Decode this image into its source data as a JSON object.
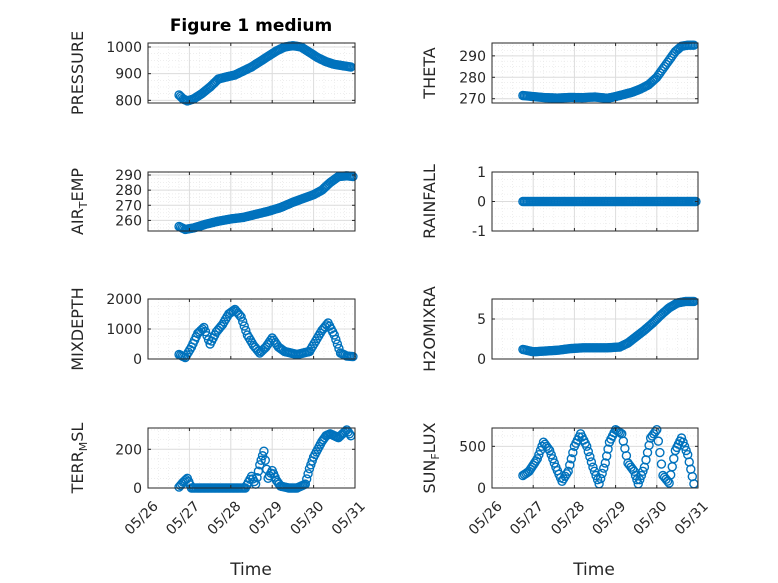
{
  "figure": {
    "title": "Figure 1 medium",
    "colors": {
      "marker": "#0072BD",
      "axis": "#262626",
      "grid": "#dcdcdc",
      "background": "#ffffff"
    }
  },
  "chart_data": [
    {
      "type": "scatter",
      "ylabel": "PRESSURE",
      "title": "Figure 1 medium",
      "ylim": [
        790,
        1015
      ],
      "yticks": [
        800,
        900,
        1000
      ],
      "xlim": [
        "05/26",
        "05/31"
      ],
      "grid": true,
      "x": [
        0.75,
        0.85,
        0.95,
        1.1,
        1.3,
        1.5,
        1.7,
        1.9,
        2.1,
        2.3,
        2.5,
        2.7,
        2.9,
        3.1,
        3.3,
        3.5,
        3.7,
        3.9,
        4.1,
        4.3,
        4.5,
        4.7,
        4.9
      ],
      "values": [
        820,
        805,
        798,
        805,
        825,
        850,
        880,
        888,
        895,
        910,
        925,
        945,
        965,
        985,
        1000,
        1005,
        1000,
        980,
        960,
        945,
        935,
        930,
        925
      ]
    },
    {
      "type": "scatter",
      "ylabel": "THETA",
      "ylim": [
        268,
        296
      ],
      "yticks": [
        270,
        280,
        290
      ],
      "xlim": [
        "05/26",
        "05/31"
      ],
      "grid": true,
      "x": [
        0.75,
        1.0,
        1.3,
        1.6,
        1.9,
        2.2,
        2.5,
        2.8,
        3.0,
        3.2,
        3.4,
        3.6,
        3.8,
        4.0,
        4.15,
        4.3,
        4.45,
        4.6,
        4.75,
        4.9
      ],
      "values": [
        271.5,
        271,
        270.5,
        270.3,
        270.6,
        270.5,
        270.8,
        270.2,
        271,
        272,
        273,
        274.5,
        276.5,
        280,
        284,
        288,
        292,
        294.5,
        295,
        295
      ]
    },
    {
      "type": "scatter",
      "ylabel": "AIR_TEMP",
      "ylim": [
        253,
        292
      ],
      "yticks": [
        260,
        270,
        280,
        290
      ],
      "xlim": [
        "05/26",
        "05/31"
      ],
      "grid": true,
      "x": [
        0.75,
        0.9,
        1.1,
        1.4,
        1.7,
        2.0,
        2.3,
        2.6,
        2.9,
        3.2,
        3.5,
        3.8,
        4.0,
        4.2,
        4.4,
        4.6,
        4.8,
        4.95
      ],
      "values": [
        256,
        254,
        255,
        257.5,
        259.5,
        261,
        262,
        264,
        266,
        268.5,
        272,
        275,
        277,
        280,
        285,
        289,
        289.5,
        289
      ]
    },
    {
      "type": "scatter",
      "ylabel": "RAINFALL",
      "ylim": [
        -1,
        1
      ],
      "yticks": [
        -1,
        0,
        1
      ],
      "xlim": [
        "05/26",
        "05/31"
      ],
      "grid": true,
      "x": [
        0.75,
        1.0,
        1.25,
        1.5,
        1.75,
        2.0,
        2.25,
        2.5,
        2.75,
        3.0,
        3.25,
        3.5,
        3.75,
        4.0,
        4.25,
        4.5,
        4.75,
        4.95
      ],
      "values": [
        0,
        0,
        0,
        0,
        0,
        0,
        0,
        0,
        0,
        0,
        0,
        0,
        0,
        0,
        0,
        0,
        0,
        0
      ]
    },
    {
      "type": "scatter",
      "ylabel": "MIXDEPTH",
      "ylim": [
        0,
        2000
      ],
      "yticks": [
        0,
        1000,
        2000
      ],
      "xlim": [
        "05/26",
        "05/31"
      ],
      "grid": true,
      "x": [
        0.75,
        0.9,
        1.05,
        1.2,
        1.35,
        1.5,
        1.65,
        1.8,
        1.95,
        2.1,
        2.25,
        2.4,
        2.55,
        2.7,
        2.85,
        3.0,
        3.15,
        3.3,
        3.45,
        3.6,
        3.75,
        3.9,
        4.05,
        4.2,
        4.35,
        4.5,
        4.65,
        4.8,
        4.95
      ],
      "values": [
        150,
        50,
        400,
        850,
        1050,
        500,
        900,
        1150,
        1500,
        1650,
        1400,
        800,
        450,
        200,
        400,
        700,
        400,
        250,
        200,
        150,
        200,
        250,
        600,
        950,
        1200,
        800,
        200,
        100,
        80
      ]
    },
    {
      "type": "scatter",
      "ylabel": "H2OMIXRA",
      "ylim": [
        0,
        7.5
      ],
      "yticks": [
        0,
        5
      ],
      "xlim": [
        "05/26",
        "05/31"
      ],
      "grid": true,
      "x": [
        0.75,
        1.0,
        1.3,
        1.6,
        1.9,
        2.2,
        2.5,
        2.8,
        3.1,
        3.3,
        3.5,
        3.7,
        3.9,
        4.1,
        4.3,
        4.5,
        4.7,
        4.9
      ],
      "values": [
        1.2,
        0.9,
        1.0,
        1.1,
        1.3,
        1.4,
        1.4,
        1.4,
        1.5,
        2.0,
        2.8,
        3.6,
        4.5,
        5.5,
        6.4,
        7.0,
        7.2,
        7.2
      ]
    },
    {
      "type": "scatter",
      "ylabel": "TERR_MSL",
      "ylim": [
        0,
        310
      ],
      "yticks": [
        0,
        200
      ],
      "xlim": [
        "05/26",
        "05/31"
      ],
      "grid": true,
      "x": [
        0.75,
        0.85,
        0.95,
        1.05,
        1.2,
        1.4,
        1.6,
        1.8,
        2.0,
        2.2,
        2.35,
        2.5,
        2.6,
        2.7,
        2.8,
        2.9,
        3.0,
        3.1,
        3.2,
        3.4,
        3.6,
        3.8,
        3.9,
        4.0,
        4.1,
        4.2,
        4.3,
        4.4,
        4.5,
        4.6,
        4.7,
        4.8,
        4.9
      ],
      "values": [
        5,
        30,
        50,
        0,
        0,
        0,
        0,
        0,
        0,
        0,
        0,
        60,
        20,
        120,
        190,
        50,
        90,
        40,
        10,
        0,
        0,
        20,
        100,
        160,
        200,
        240,
        270,
        280,
        270,
        260,
        280,
        300,
        270
      ]
    },
    {
      "type": "scatter",
      "ylabel": "SUN_FLUX",
      "ylim": [
        0,
        720
      ],
      "yticks": [
        0,
        500
      ],
      "xlim": [
        "05/26",
        "05/31"
      ],
      "grid": true,
      "x": [
        0.75,
        0.9,
        1.1,
        1.25,
        1.4,
        1.55,
        1.7,
        1.85,
        2.0,
        2.15,
        2.3,
        2.45,
        2.6,
        2.75,
        2.85,
        3.0,
        3.15,
        3.3,
        3.45,
        3.55,
        3.7,
        3.85,
        4.0,
        4.15,
        4.3,
        4.45,
        4.6,
        4.75,
        4.9
      ],
      "values": [
        150,
        200,
        350,
        550,
        450,
        250,
        80,
        200,
        500,
        650,
        500,
        250,
        50,
        300,
        550,
        700,
        650,
        300,
        200,
        50,
        250,
        600,
        700,
        150,
        60,
        450,
        600,
        400,
        50
      ]
    }
  ],
  "xaxis": {
    "tick_labels": [
      "05/26",
      "05/27",
      "05/28",
      "05/29",
      "05/30",
      "05/31"
    ],
    "label": "Time"
  }
}
